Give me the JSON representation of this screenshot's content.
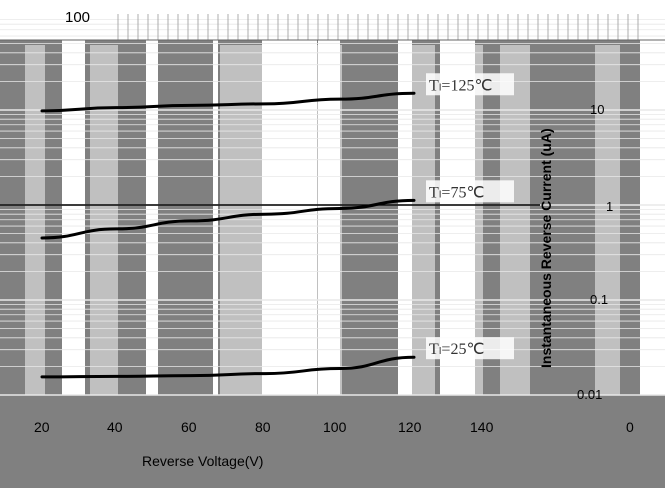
{
  "chart_data": {
    "type": "line",
    "title": "",
    "xlabel": "Reverse Voltage(V)",
    "ylabel": "Instantaneous Reverse Current (uA)",
    "x_ticks": [
      "20",
      "40",
      "60",
      "80",
      "100",
      "120",
      "140",
      "0"
    ],
    "y_ticks": [
      "100",
      "10",
      "1",
      "0.1",
      "0.01"
    ],
    "x_range": [
      20,
      140
    ],
    "y_range": [
      0.01,
      100
    ],
    "y_scale": "log",
    "grid": true,
    "series": [
      {
        "name": "Tₗ=125℃",
        "x": [
          20,
          40,
          60,
          80,
          100,
          120
        ],
        "y": [
          9.8,
          10.6,
          11.2,
          11.6,
          13.0,
          15.0
        ]
      },
      {
        "name": "Tₗ=75℃",
        "x": [
          20,
          40,
          60,
          80,
          100,
          120
        ],
        "y": [
          0.45,
          0.56,
          0.68,
          0.8,
          0.92,
          1.12
        ]
      },
      {
        "name": "Tₗ=25℃",
        "x": [
          20,
          40,
          60,
          80,
          100,
          120
        ],
        "y": [
          0.0155,
          0.0157,
          0.016,
          0.0168,
          0.019,
          0.025
        ]
      }
    ]
  },
  "colors": {
    "background": "#ffffff",
    "dark_band": "#808080",
    "light_band": "#c0c0c0",
    "grid": "#e8e8e8",
    "curve": "#000000",
    "axis_line": "#000000",
    "label_box": "#ffffff"
  }
}
